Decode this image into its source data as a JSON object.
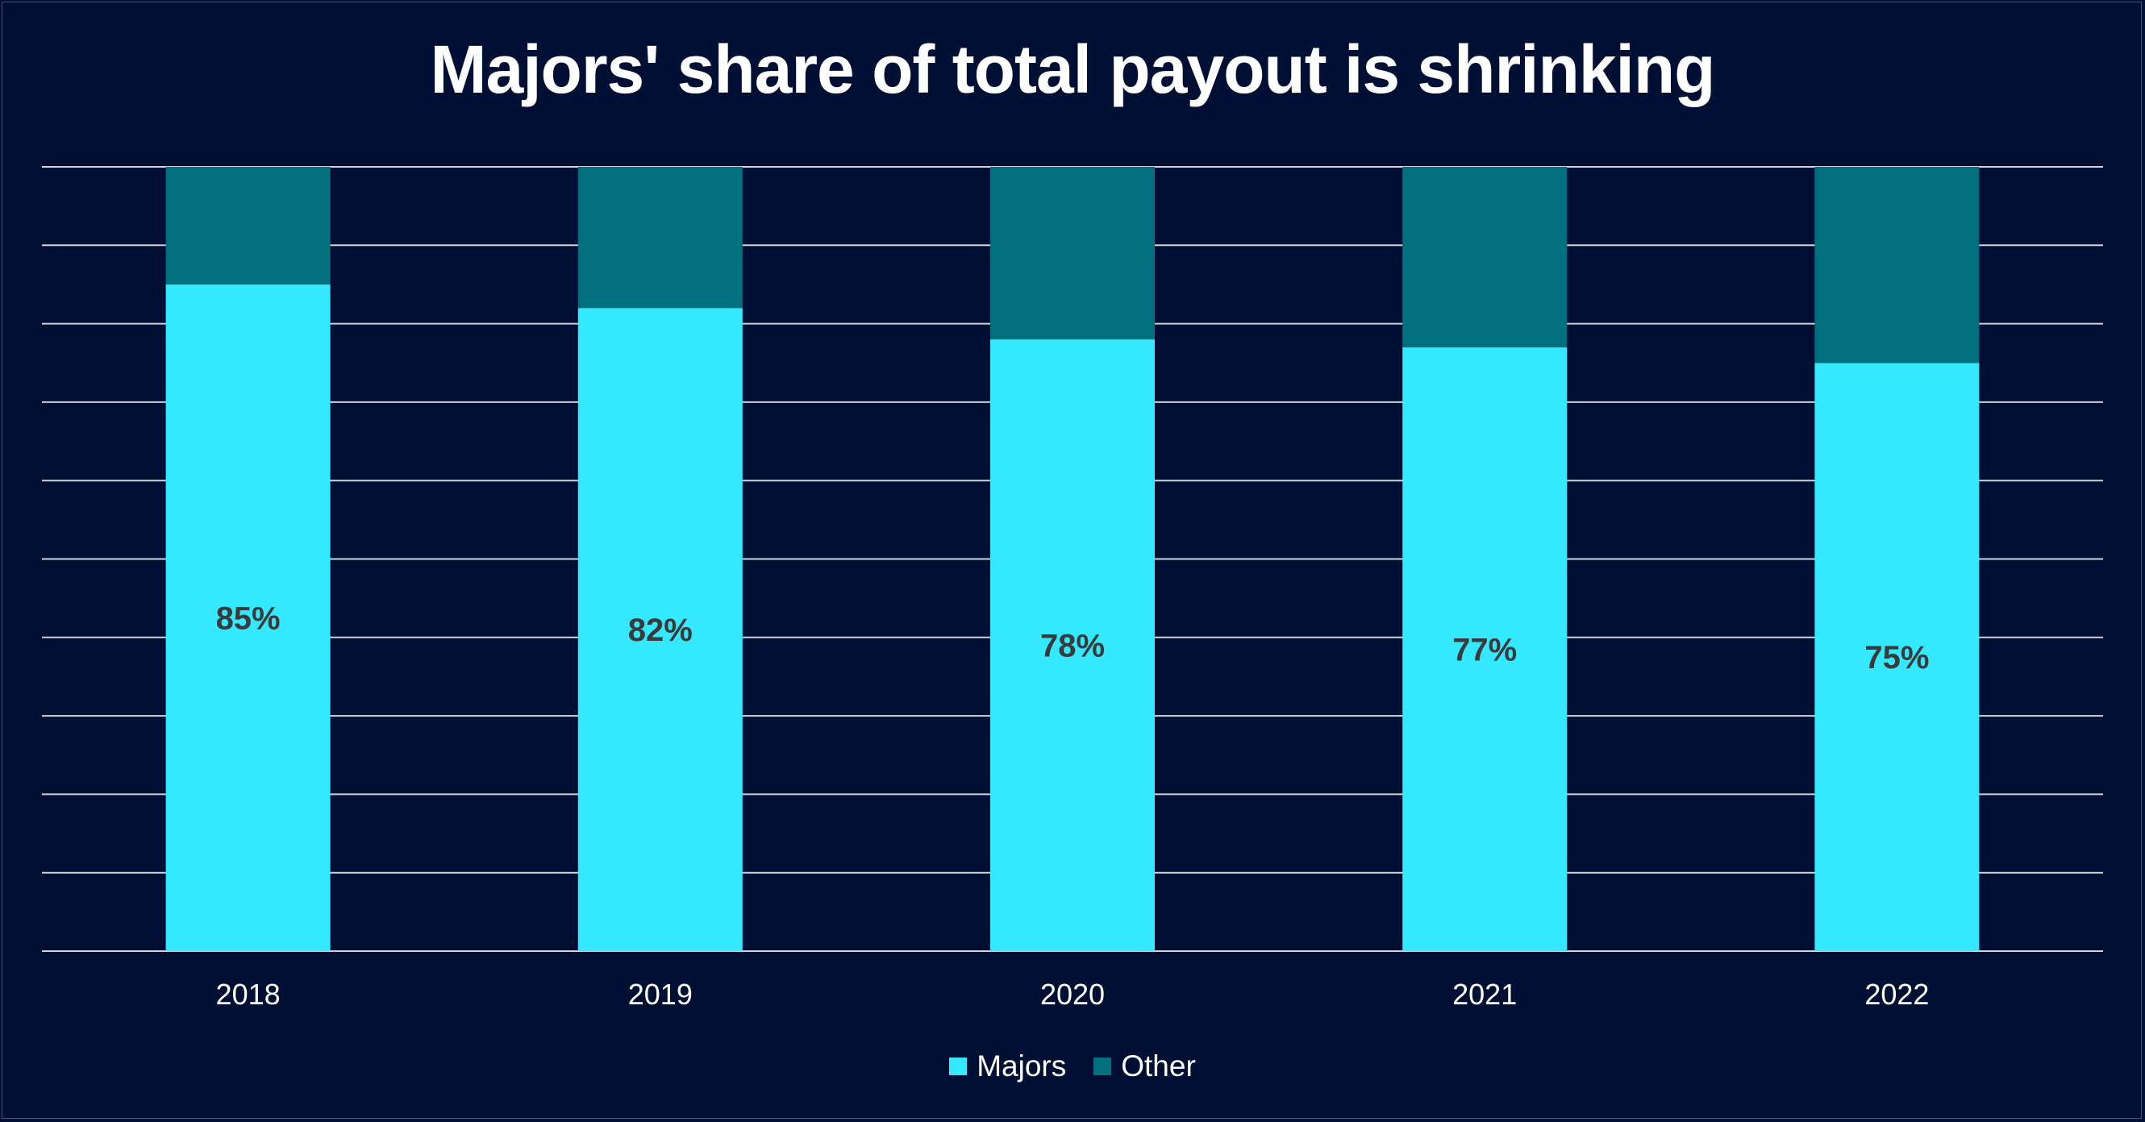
{
  "chart_data": {
    "type": "bar",
    "stacked": true,
    "percent_stacked": true,
    "title": "Majors' share of total payout is shrinking",
    "categories": [
      "2018",
      "2019",
      "2020",
      "2021",
      "2022"
    ],
    "series": [
      {
        "name": "Majors",
        "values": [
          85,
          82,
          78,
          77,
          75
        ],
        "color": "#33e8ff",
        "labels": [
          "85%",
          "82%",
          "78%",
          "77%",
          "75%"
        ]
      },
      {
        "name": "Other",
        "values": [
          15,
          18,
          22,
          23,
          25
        ],
        "color": "#00707f"
      }
    ],
    "ylim": [
      0,
      100
    ],
    "grid": true,
    "gridlines": 10,
    "legend": "bottom-center",
    "xlabel": "",
    "ylabel": "",
    "background": "#001034",
    "label_color": "#3a3a3a"
  }
}
